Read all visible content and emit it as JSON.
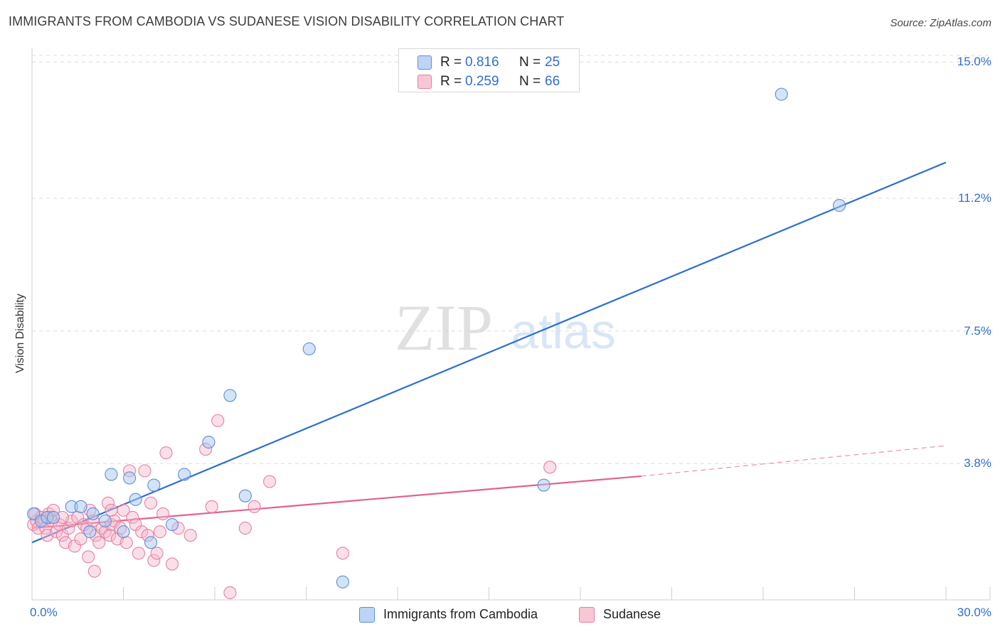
{
  "header": {
    "title": "IMMIGRANTS FROM CAMBODIA VS SUDANESE VISION DISABILITY CORRELATION CHART",
    "source": "Source: ZipAtlas.com"
  },
  "watermark": {
    "zip": "ZIP",
    "atlas": "atlas"
  },
  "legend": {
    "r_label": "R =",
    "n_label": "N =",
    "series": [
      {
        "name": "Immigrants from Cambodia",
        "r": "0.816",
        "n": "25"
      },
      {
        "name": "Sudanese",
        "r": "0.259",
        "n": "66"
      }
    ]
  },
  "colors": {
    "cambodia_fill": "#a9c8f0",
    "cambodia_stroke": "#5b8fd6",
    "cambodia_line": "#2b6fd0",
    "sudanese_fill": "#f6b8cb",
    "sudanese_stroke": "#e77fa0",
    "sudanese_line": "#e2628b",
    "grid": "#dcdcdc",
    "tick_text": "#2f6fd1"
  },
  "chart_data": {
    "type": "scatter",
    "title": "IMMIGRANTS FROM CAMBODIA VS SUDANESE VISION DISABILITY CORRELATION CHART",
    "xlabel": "",
    "ylabel": "Vision Disability",
    "xlim": [
      0,
      30
    ],
    "ylim": [
      0,
      15.5
    ],
    "x_tick_labels": [
      {
        "value": 0,
        "label": "0.0%"
      },
      {
        "value": 30,
        "label": "30.0%"
      }
    ],
    "y_tick_labels": [
      {
        "value": 3.8,
        "label": "3.8%"
      },
      {
        "value": 7.5,
        "label": "7.5%"
      },
      {
        "value": 11.2,
        "label": "11.2%"
      },
      {
        "value": 15.0,
        "label": "15.0%"
      }
    ],
    "x_minor_ticks": [
      3,
      6,
      9,
      12,
      15,
      18,
      21,
      24,
      27,
      30
    ],
    "series": [
      {
        "name": "Immigrants from Cambodia",
        "points": [
          [
            0.05,
            2.4
          ],
          [
            0.3,
            2.2
          ],
          [
            0.5,
            2.3
          ],
          [
            0.7,
            2.3
          ],
          [
            1.3,
            2.6
          ],
          [
            1.6,
            2.6
          ],
          [
            1.9,
            1.9
          ],
          [
            2.0,
            2.4
          ],
          [
            2.4,
            2.2
          ],
          [
            2.6,
            3.5
          ],
          [
            3.0,
            1.9
          ],
          [
            3.2,
            3.4
          ],
          [
            3.4,
            2.8
          ],
          [
            3.9,
            1.6
          ],
          [
            4.0,
            3.2
          ],
          [
            4.6,
            2.1
          ],
          [
            5.0,
            3.5
          ],
          [
            5.8,
            4.4
          ],
          [
            6.5,
            5.7
          ],
          [
            7.0,
            2.9
          ],
          [
            9.1,
            7.0
          ],
          [
            10.2,
            0.5
          ],
          [
            16.8,
            3.2
          ],
          [
            24.6,
            14.1
          ],
          [
            26.5,
            11.0
          ]
        ],
        "trend": {
          "x0": 0,
          "y0": 1.6,
          "x1": 30,
          "y1": 12.2
        }
      },
      {
        "name": "Sudanese",
        "points": [
          [
            0.05,
            2.1
          ],
          [
            0.1,
            2.4
          ],
          [
            0.15,
            2.2
          ],
          [
            0.2,
            2.0
          ],
          [
            0.3,
            2.3
          ],
          [
            0.4,
            2.2
          ],
          [
            0.45,
            2.0
          ],
          [
            0.5,
            1.8
          ],
          [
            0.55,
            2.4
          ],
          [
            0.6,
            2.3
          ],
          [
            0.65,
            2.2
          ],
          [
            0.7,
            2.5
          ],
          [
            0.8,
            1.9
          ],
          [
            0.9,
            2.1
          ],
          [
            1.0,
            1.8
          ],
          [
            1.1,
            1.6
          ],
          [
            1.2,
            2.0
          ],
          [
            1.3,
            2.2
          ],
          [
            1.4,
            1.5
          ],
          [
            1.5,
            2.3
          ],
          [
            1.6,
            1.7
          ],
          [
            1.7,
            2.1
          ],
          [
            1.8,
            2.0
          ],
          [
            1.85,
            1.2
          ],
          [
            1.9,
            2.5
          ],
          [
            2.0,
            2.2
          ],
          [
            2.05,
            0.8
          ],
          [
            2.1,
            1.8
          ],
          [
            2.2,
            1.6
          ],
          [
            2.3,
            2.0
          ],
          [
            2.4,
            1.9
          ],
          [
            2.5,
            2.7
          ],
          [
            2.55,
            1.8
          ],
          [
            2.6,
            2.1
          ],
          [
            2.7,
            2.2
          ],
          [
            2.8,
            1.7
          ],
          [
            2.9,
            2.0
          ],
          [
            3.0,
            2.5
          ],
          [
            3.1,
            1.6
          ],
          [
            3.2,
            3.6
          ],
          [
            3.3,
            2.3
          ],
          [
            3.4,
            2.1
          ],
          [
            3.5,
            1.3
          ],
          [
            3.6,
            1.9
          ],
          [
            3.7,
            3.6
          ],
          [
            3.8,
            1.8
          ],
          [
            3.9,
            2.7
          ],
          [
            4.0,
            1.1
          ],
          [
            4.1,
            1.3
          ],
          [
            4.2,
            1.9
          ],
          [
            4.3,
            2.4
          ],
          [
            4.4,
            4.1
          ],
          [
            4.6,
            1.0
          ],
          [
            4.8,
            2.0
          ],
          [
            5.2,
            1.8
          ],
          [
            5.7,
            4.2
          ],
          [
            5.9,
            2.6
          ],
          [
            6.1,
            5.0
          ],
          [
            6.5,
            0.2
          ],
          [
            7.0,
            2.0
          ],
          [
            7.3,
            2.6
          ],
          [
            7.8,
            3.3
          ],
          [
            10.2,
            1.3
          ],
          [
            17.0,
            3.7
          ],
          [
            1.0,
            2.3
          ],
          [
            2.6,
            2.5
          ]
        ],
        "trend": {
          "x0": 0,
          "y0": 2.0,
          "x1": 20,
          "y1": 3.45
        },
        "trend_extension": {
          "x0": 20,
          "y0": 3.45,
          "x1": 30,
          "y1": 4.3
        }
      }
    ]
  },
  "bottom_legend": [
    {
      "name": "Immigrants from Cambodia"
    },
    {
      "name": "Sudanese"
    }
  ]
}
